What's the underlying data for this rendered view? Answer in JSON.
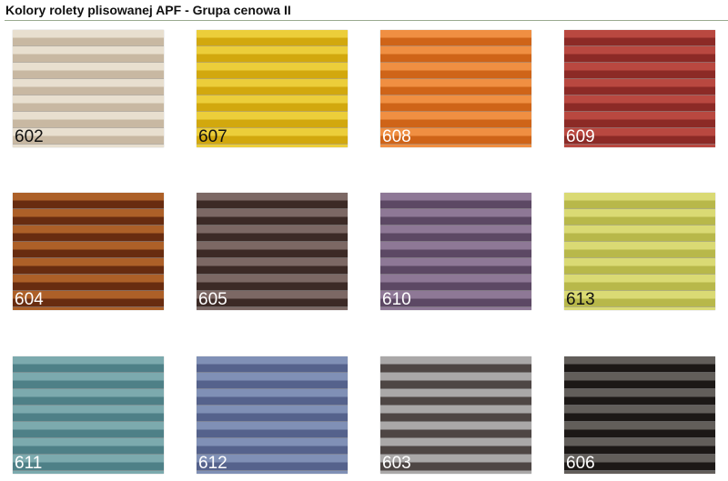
{
  "title": "Kolory rolety plisowanej APF - Grupa cenowa II",
  "swatches": [
    {
      "code": "602",
      "light": "#e8dfcf",
      "dark": "#c8b8a2",
      "label_color": "#111111"
    },
    {
      "code": "607",
      "light": "#ecce3a",
      "dark": "#d2a80e",
      "label_color": "#111111"
    },
    {
      "code": "608",
      "light": "#f08f42",
      "dark": "#cf6418",
      "label_color": "#ffffff"
    },
    {
      "code": "609",
      "light": "#b94840",
      "dark": "#8c2a26",
      "label_color": "#ffffff"
    },
    {
      "code": "604",
      "light": "#ad6028",
      "dark": "#682c10",
      "label_color": "#ffffff"
    },
    {
      "code": "605",
      "light": "#7c6864",
      "dark": "#3c2a26",
      "label_color": "#ffffff"
    },
    {
      "code": "610",
      "light": "#8e7896",
      "dark": "#5c4864",
      "label_color": "#ffffff"
    },
    {
      "code": "613",
      "light": "#dada74",
      "dark": "#b8b84a",
      "label_color": "#111111"
    },
    {
      "code": "611",
      "light": "#7caaae",
      "dark": "#4e8087",
      "label_color": "#ffffff"
    },
    {
      "code": "612",
      "light": "#8090b6",
      "dark": "#55628c",
      "label_color": "#ffffff"
    },
    {
      "code": "603",
      "light": "#aaa8a8",
      "dark": "#4e4644",
      "label_color": "#ffffff"
    },
    {
      "code": "606",
      "light": "#625e5a",
      "dark": "#1c1816",
      "label_color": "#ffffff"
    }
  ]
}
